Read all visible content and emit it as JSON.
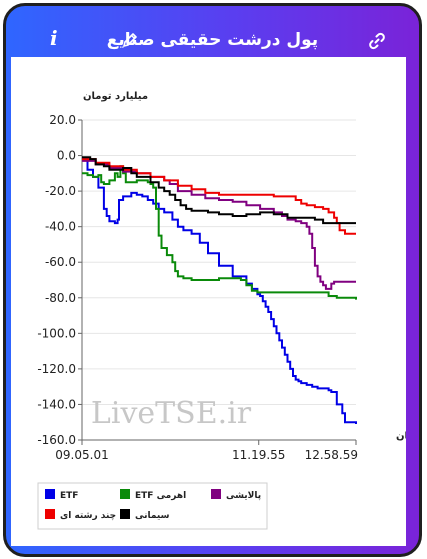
{
  "header": {
    "title": "پول درشت حقیقی صنایع",
    "info_icon": "info-icon",
    "edit_icon": "pencil-icon",
    "link_icon": "link-icon"
  },
  "watermark": "LiveTSE.ir",
  "chart_data": {
    "type": "line",
    "title": "",
    "ylabel": "میلیارد تومان",
    "xlabel": "زمان",
    "ylim": [
      -160,
      20
    ],
    "yticks": [
      20,
      0,
      -20,
      -40,
      -60,
      -80,
      -100,
      -120,
      -140,
      -160
    ],
    "ytick_labels": [
      "20.0",
      "0.0",
      "-20.0",
      "-40.0",
      "-60.0",
      "-80.0",
      "-100.0",
      "-120.0",
      "-140.0",
      "-160.0"
    ],
    "x_domain": [
      0,
      1
    ],
    "xticks": [
      {
        "pos": 0.0,
        "label": "09.05.01"
      },
      {
        "pos": 0.645,
        "label": "11.19.55"
      },
      {
        "pos": 1.0,
        "label": "12.58.59"
      }
    ],
    "grid": true,
    "legend_position": "bottom",
    "series": [
      {
        "name": "ETF",
        "color": "#0000e6",
        "points": [
          [
            0,
            -2
          ],
          [
            0.02,
            -8
          ],
          [
            0.04,
            -12
          ],
          [
            0.06,
            -18
          ],
          [
            0.08,
            -30
          ],
          [
            0.09,
            -34
          ],
          [
            0.1,
            -37
          ],
          [
            0.12,
            -38
          ],
          [
            0.13,
            -36
          ],
          [
            0.135,
            -25
          ],
          [
            0.15,
            -23
          ],
          [
            0.17,
            -23
          ],
          [
            0.18,
            -21
          ],
          [
            0.2,
            -22
          ],
          [
            0.22,
            -23
          ],
          [
            0.24,
            -25
          ],
          [
            0.26,
            -27
          ],
          [
            0.28,
            -30
          ],
          [
            0.3,
            -32
          ],
          [
            0.33,
            -36
          ],
          [
            0.35,
            -40
          ],
          [
            0.37,
            -42
          ],
          [
            0.4,
            -44
          ],
          [
            0.43,
            -49
          ],
          [
            0.46,
            -55
          ],
          [
            0.5,
            -62
          ],
          [
            0.55,
            -68
          ],
          [
            0.6,
            -72
          ],
          [
            0.62,
            -75
          ],
          [
            0.64,
            -78
          ],
          [
            0.65,
            -79
          ],
          [
            0.66,
            -82
          ],
          [
            0.67,
            -85
          ],
          [
            0.68,
            -88
          ],
          [
            0.69,
            -92
          ],
          [
            0.7,
            -96
          ],
          [
            0.71,
            -100
          ],
          [
            0.72,
            -104
          ],
          [
            0.73,
            -108
          ],
          [
            0.74,
            -112
          ],
          [
            0.75,
            -116
          ],
          [
            0.76,
            -120
          ],
          [
            0.77,
            -124
          ],
          [
            0.78,
            -126
          ],
          [
            0.79,
            -127
          ],
          [
            0.8,
            -128
          ],
          [
            0.82,
            -129
          ],
          [
            0.84,
            -130
          ],
          [
            0.86,
            -131
          ],
          [
            0.88,
            -131
          ],
          [
            0.9,
            -132
          ],
          [
            0.91,
            -133
          ],
          [
            0.92,
            -133
          ],
          [
            0.93,
            -140
          ],
          [
            0.95,
            -145
          ],
          [
            0.96,
            -150
          ],
          [
            1.0,
            -151
          ]
        ]
      },
      {
        "name": "ETF اهرمی",
        "color": "#0a8a0a",
        "points": [
          [
            0,
            -10
          ],
          [
            0.02,
            -11
          ],
          [
            0.04,
            -12
          ],
          [
            0.06,
            -11
          ],
          [
            0.07,
            -15
          ],
          [
            0.08,
            -16
          ],
          [
            0.1,
            -14
          ],
          [
            0.12,
            -10
          ],
          [
            0.13,
            -12
          ],
          [
            0.14,
            -6
          ],
          [
            0.15,
            -10
          ],
          [
            0.16,
            -15
          ],
          [
            0.18,
            -15
          ],
          [
            0.2,
            -14
          ],
          [
            0.22,
            -14
          ],
          [
            0.24,
            -15
          ],
          [
            0.25,
            -16
          ],
          [
            0.26,
            -18
          ],
          [
            0.27,
            -30
          ],
          [
            0.28,
            -45
          ],
          [
            0.29,
            -52
          ],
          [
            0.31,
            -56
          ],
          [
            0.33,
            -60
          ],
          [
            0.34,
            -65
          ],
          [
            0.35,
            -68
          ],
          [
            0.37,
            -69
          ],
          [
            0.4,
            -70
          ],
          [
            0.45,
            -70
          ],
          [
            0.5,
            -69
          ],
          [
            0.55,
            -69
          ],
          [
            0.58,
            -70
          ],
          [
            0.6,
            -73
          ],
          [
            0.62,
            -76
          ],
          [
            0.64,
            -77
          ],
          [
            0.66,
            -77
          ],
          [
            0.7,
            -77
          ],
          [
            0.8,
            -77
          ],
          [
            0.85,
            -77
          ],
          [
            0.9,
            -79
          ],
          [
            0.93,
            -80
          ],
          [
            1.0,
            -81
          ]
        ]
      },
      {
        "name": "پالایشی",
        "color": "#800080",
        "points": [
          [
            0,
            -3
          ],
          [
            0.05,
            -5
          ],
          [
            0.1,
            -7
          ],
          [
            0.15,
            -9
          ],
          [
            0.2,
            -10
          ],
          [
            0.25,
            -12
          ],
          [
            0.3,
            -14
          ],
          [
            0.32,
            -16
          ],
          [
            0.35,
            -20
          ],
          [
            0.4,
            -22
          ],
          [
            0.45,
            -24
          ],
          [
            0.5,
            -25
          ],
          [
            0.55,
            -26
          ],
          [
            0.6,
            -28
          ],
          [
            0.65,
            -30
          ],
          [
            0.7,
            -32
          ],
          [
            0.73,
            -34
          ],
          [
            0.75,
            -36
          ],
          [
            0.78,
            -37
          ],
          [
            0.8,
            -38
          ],
          [
            0.82,
            -40
          ],
          [
            0.83,
            -44
          ],
          [
            0.84,
            -52
          ],
          [
            0.85,
            -62
          ],
          [
            0.86,
            -68
          ],
          [
            0.87,
            -71
          ],
          [
            0.88,
            -73
          ],
          [
            0.89,
            -75
          ],
          [
            0.9,
            -75
          ],
          [
            0.91,
            -72
          ],
          [
            0.92,
            -71
          ],
          [
            1.0,
            -71
          ]
        ]
      },
      {
        "name": "چند رشته ای",
        "color": "#ee0000",
        "points": [
          [
            0,
            -2
          ],
          [
            0.05,
            -4
          ],
          [
            0.1,
            -6
          ],
          [
            0.15,
            -8
          ],
          [
            0.2,
            -10
          ],
          [
            0.25,
            -12
          ],
          [
            0.3,
            -14
          ],
          [
            0.35,
            -17
          ],
          [
            0.4,
            -19
          ],
          [
            0.45,
            -21
          ],
          [
            0.5,
            -22
          ],
          [
            0.55,
            -22
          ],
          [
            0.6,
            -22
          ],
          [
            0.65,
            -22
          ],
          [
            0.7,
            -23
          ],
          [
            0.75,
            -23
          ],
          [
            0.78,
            -25
          ],
          [
            0.8,
            -27
          ],
          [
            0.82,
            -28
          ],
          [
            0.85,
            -29
          ],
          [
            0.88,
            -30
          ],
          [
            0.9,
            -32
          ],
          [
            0.92,
            -35
          ],
          [
            0.93,
            -38
          ],
          [
            0.94,
            -42
          ],
          [
            0.96,
            -44
          ],
          [
            1.0,
            -44
          ]
        ]
      },
      {
        "name": "سیمانی",
        "color": "#000000",
        "points": [
          [
            0,
            -1
          ],
          [
            0.03,
            -2
          ],
          [
            0.05,
            -5
          ],
          [
            0.08,
            -6
          ],
          [
            0.1,
            -8
          ],
          [
            0.12,
            -8
          ],
          [
            0.15,
            -7
          ],
          [
            0.18,
            -10
          ],
          [
            0.2,
            -12
          ],
          [
            0.23,
            -12
          ],
          [
            0.25,
            -15
          ],
          [
            0.28,
            -18
          ],
          [
            0.3,
            -20
          ],
          [
            0.32,
            -22
          ],
          [
            0.34,
            -25
          ],
          [
            0.36,
            -28
          ],
          [
            0.38,
            -30
          ],
          [
            0.4,
            -31
          ],
          [
            0.43,
            -31
          ],
          [
            0.46,
            -32
          ],
          [
            0.5,
            -33
          ],
          [
            0.55,
            -34
          ],
          [
            0.6,
            -33
          ],
          [
            0.65,
            -32
          ],
          [
            0.7,
            -33
          ],
          [
            0.75,
            -35
          ],
          [
            0.8,
            -35
          ],
          [
            0.85,
            -36
          ],
          [
            0.88,
            -38
          ],
          [
            0.9,
            -38
          ],
          [
            0.95,
            -38
          ],
          [
            1.0,
            -38
          ]
        ]
      }
    ]
  }
}
